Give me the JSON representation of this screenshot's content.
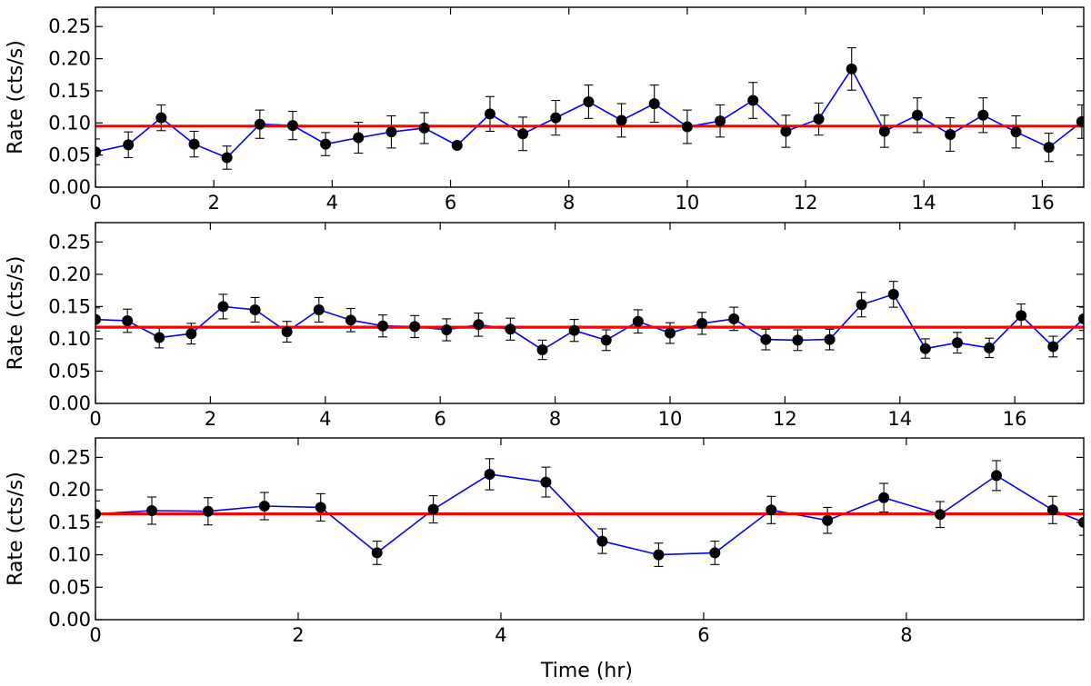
{
  "chart_data": [
    {
      "type": "line",
      "xlabel": "",
      "ylabel": "Rate (cts/s)",
      "xlim": [
        0,
        16.7
      ],
      "ylim": [
        0,
        0.28
      ],
      "xticks": [
        0,
        2,
        4,
        6,
        8,
        10,
        12,
        14,
        16
      ],
      "yticks": [
        "0.00",
        "0.05",
        "0.10",
        "0.15",
        "0.20",
        "0.25"
      ],
      "mean_rate": 0.095,
      "series": [
        {
          "name": "rate",
          "x": [
            0,
            0.556,
            1.111,
            1.667,
            2.222,
            2.778,
            3.333,
            3.889,
            4.444,
            5.0,
            5.556,
            6.111,
            6.667,
            7.222,
            7.778,
            8.333,
            8.889,
            9.444,
            10.0,
            10.556,
            11.111,
            11.667,
            12.222,
            12.778,
            13.333,
            13.889,
            14.444,
            15.0,
            15.556,
            16.111,
            16.667
          ],
          "y": [
            0.055,
            0.066,
            0.108,
            0.067,
            0.046,
            0.098,
            0.096,
            0.067,
            0.077,
            0.086,
            0.092,
            0.065,
            0.114,
            0.083,
            0.108,
            0.133,
            0.104,
            0.13,
            0.094,
            0.103,
            0.135,
            0.087,
            0.106,
            0.184,
            0.087,
            0.112,
            0.082,
            0.112,
            0.086,
            0.062,
            0.102
          ],
          "err": [
            0.02,
            0.02,
            0.02,
            0.02,
            0.018,
            0.022,
            0.022,
            0.018,
            0.024,
            0.025,
            0.024,
            0.0,
            0.027,
            0.026,
            0.027,
            0.026,
            0.026,
            0.029,
            0.026,
            0.025,
            0.028,
            0.025,
            0.025,
            0.033,
            0.025,
            0.027,
            0.026,
            0.027,
            0.025,
            0.022,
            0.026
          ]
        }
      ]
    },
    {
      "type": "line",
      "xlabel": "",
      "ylabel": "Rate (cts/s)",
      "xlim": [
        0,
        17.2
      ],
      "ylim": [
        0,
        0.28
      ],
      "xticks": [
        0,
        2,
        4,
        6,
        8,
        10,
        12,
        14,
        16
      ],
      "yticks": [
        "0.00",
        "0.05",
        "0.10",
        "0.15",
        "0.20",
        "0.25"
      ],
      "mean_rate": 0.118,
      "series": [
        {
          "name": "rate",
          "x": [
            0,
            0.556,
            1.111,
            1.667,
            2.222,
            2.778,
            3.333,
            3.889,
            4.444,
            5.0,
            5.556,
            6.111,
            6.667,
            7.222,
            7.778,
            8.333,
            8.889,
            9.444,
            10.0,
            10.556,
            11.111,
            11.667,
            12.222,
            12.778,
            13.333,
            13.889,
            14.444,
            15.0,
            15.556,
            16.111,
            16.667,
            17.2
          ],
          "y": [
            0.13,
            0.128,
            0.102,
            0.108,
            0.15,
            0.145,
            0.111,
            0.145,
            0.129,
            0.12,
            0.119,
            0.114,
            0.122,
            0.115,
            0.083,
            0.113,
            0.098,
            0.127,
            0.109,
            0.124,
            0.131,
            0.099,
            0.098,
            0.099,
            0.153,
            0.169,
            0.085,
            0.094,
            0.086,
            0.136,
            0.088,
            0.131
          ],
          "err": [
            0.018,
            0.018,
            0.016,
            0.016,
            0.019,
            0.019,
            0.016,
            0.019,
            0.018,
            0.017,
            0.017,
            0.017,
            0.018,
            0.017,
            0.015,
            0.017,
            0.016,
            0.018,
            0.016,
            0.017,
            0.018,
            0.016,
            0.016,
            0.016,
            0.019,
            0.02,
            0.015,
            0.016,
            0.015,
            0.018,
            0.016,
            0.018
          ]
        }
      ]
    },
    {
      "type": "line",
      "xlabel": "Time (hr)",
      "ylabel": "Rate (cts/s)",
      "xlim": [
        0,
        9.75
      ],
      "ylim": [
        0,
        0.28
      ],
      "xticks": [
        0,
        2,
        4,
        6,
        8
      ],
      "yticks": [
        "0.00",
        "0.05",
        "0.10",
        "0.15",
        "0.20",
        "0.25"
      ],
      "mean_rate": 0.163,
      "series": [
        {
          "name": "rate",
          "x": [
            0,
            0.556,
            1.111,
            1.667,
            2.222,
            2.778,
            3.333,
            3.889,
            4.444,
            5.0,
            5.556,
            6.111,
            6.667,
            7.222,
            7.778,
            8.333,
            8.889,
            9.444,
            9.75
          ],
          "y": [
            0.163,
            0.168,
            0.167,
            0.175,
            0.173,
            0.103,
            0.17,
            0.224,
            0.212,
            0.121,
            0.1,
            0.103,
            0.169,
            0.153,
            0.188,
            0.162,
            0.222,
            0.169,
            0.15
          ],
          "err": [
            0.02,
            0.021,
            0.021,
            0.021,
            0.021,
            0.018,
            0.021,
            0.024,
            0.023,
            0.019,
            0.018,
            0.018,
            0.021,
            0.02,
            0.022,
            0.02,
            0.023,
            0.021,
            0.02
          ]
        }
      ]
    }
  ]
}
